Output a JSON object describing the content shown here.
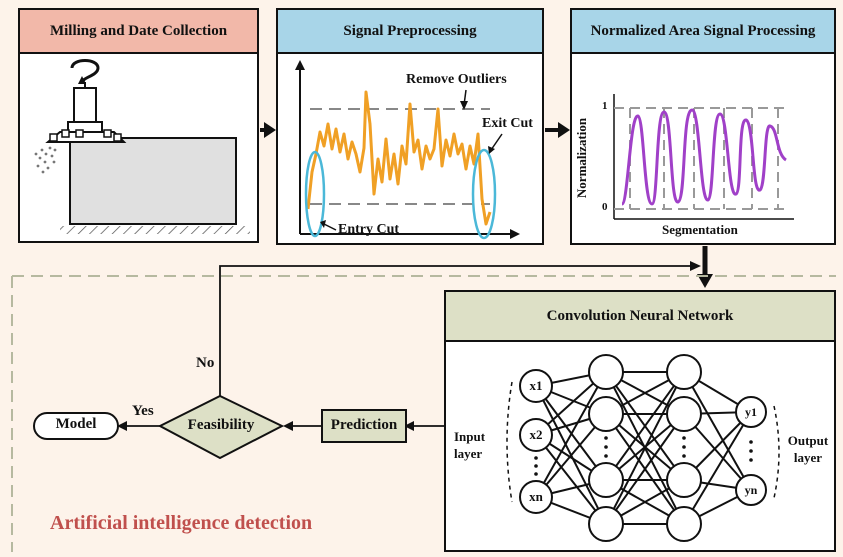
{
  "colors": {
    "background": "#fdf3ea",
    "header_red": "#f2b8a9",
    "header_blue": "#a8d5e8",
    "header_olive": "#dde0c6",
    "signal_orange": "#f0a025",
    "cut_cyan": "#4bb8d8",
    "area_purple": "#a040c8",
    "decision_olive": "#dde0c6",
    "ai_text": "#c0504d"
  },
  "panels": {
    "milling": {
      "title": "Milling and Date Collection"
    },
    "preprocessing": {
      "title": "Signal Preprocessing",
      "remove_outliers": "Remove Outliers",
      "exit_cut": "Exit Cut",
      "entry_cut": "Entry Cut"
    },
    "normalized": {
      "title": "Normalized Area Signal Processing",
      "y_axis_label": "Normalization",
      "x_axis_label": "Segmentation",
      "tick_top": "1",
      "tick_bottom": "0"
    },
    "cnn": {
      "title": "Convolution Neural Network",
      "input_label": "Input layer",
      "output_label": "Output layer",
      "input_nodes": [
        "x1",
        "x2",
        "xn"
      ],
      "output_nodes": [
        "y1",
        "yn"
      ]
    }
  },
  "flow": {
    "prediction": "Prediction",
    "feasibility": "Feasibility",
    "model": "Model",
    "yes": "Yes",
    "no": "No"
  },
  "section_label": "Artificial intelligence detection"
}
